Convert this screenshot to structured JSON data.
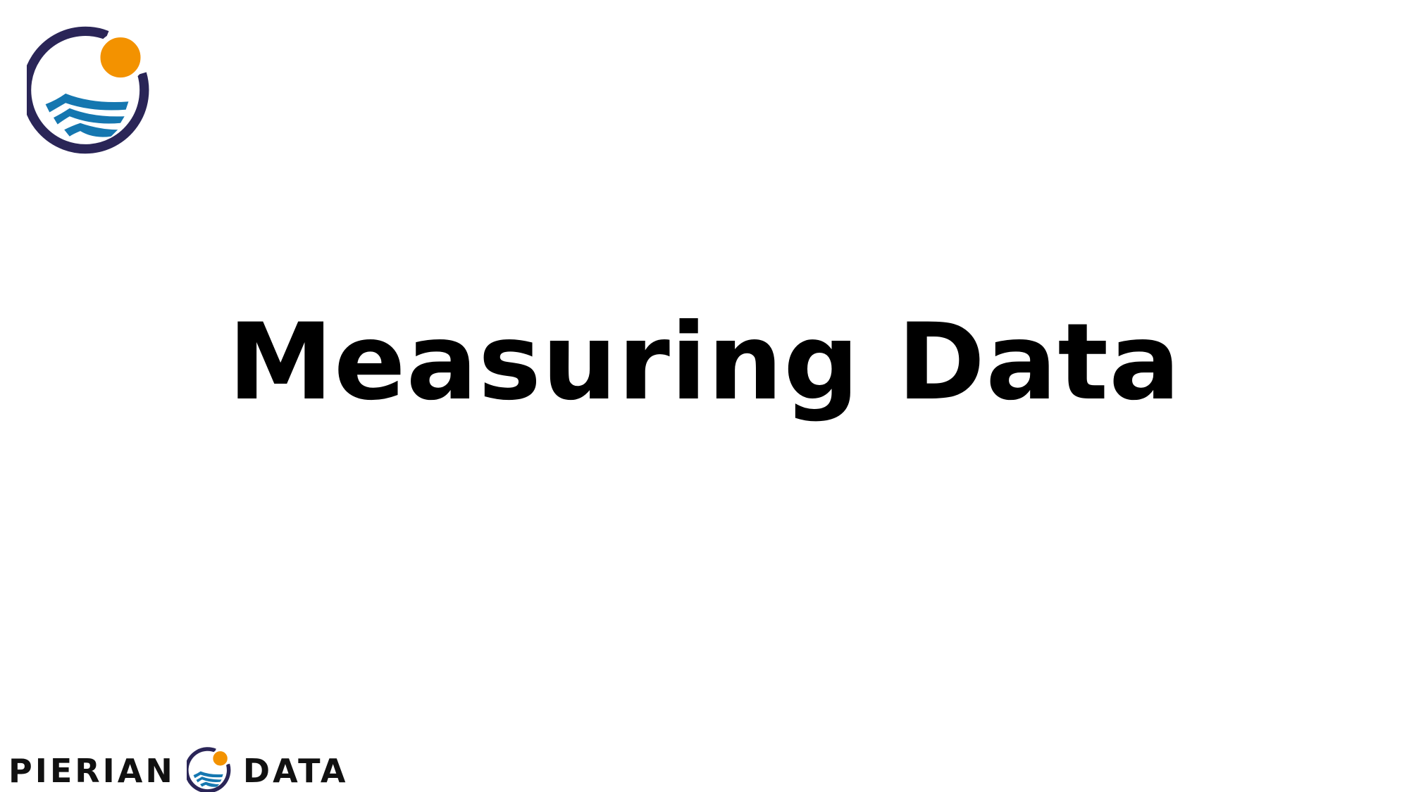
{
  "slide": {
    "title": "Measuring Data"
  },
  "brand": {
    "name_left": "PIERIAN",
    "name_right": "DATA",
    "logo_icon": "pierian-data-logo-icon"
  },
  "colors": {
    "ring": "#2a2557",
    "sun": "#f39200",
    "wave": "#1577b0",
    "text": "#000000",
    "background": "#ffffff"
  }
}
